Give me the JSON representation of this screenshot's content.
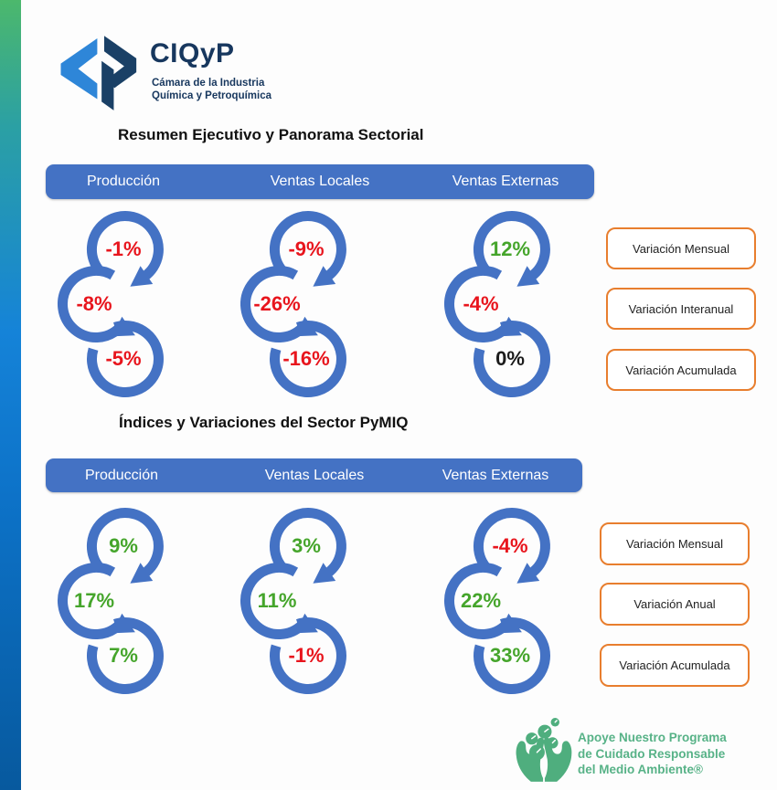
{
  "logo": {
    "name": "CIQyP",
    "subtitle_line1": "Cámara de la Industria",
    "subtitle_line2": "Química y Petroquímica"
  },
  "colors": {
    "accent_blue": "#4472C4",
    "positive_green": "#45A52B",
    "negative_red": "#E8151D",
    "neutral_black": "#1B1B1B",
    "legend_orange": "#E87E2E",
    "brand_navy": "#17375E",
    "brand_lightblue": "#2E86D8",
    "eco_green": "#57B287"
  },
  "sections": [
    {
      "title": "Resumen Ejecutivo y Panorama Sectorial",
      "columns": [
        {
          "header": "Producción",
          "values": [
            {
              "text": "-1%",
              "tone": "negative"
            },
            {
              "text": "-8%",
              "tone": "negative"
            },
            {
              "text": "-5%",
              "tone": "negative"
            }
          ]
        },
        {
          "header": "Ventas Locales",
          "values": [
            {
              "text": "-9%",
              "tone": "negative"
            },
            {
              "text": "-26%",
              "tone": "negative"
            },
            {
              "text": "-16%",
              "tone": "negative"
            }
          ]
        },
        {
          "header": "Ventas Externas",
          "values": [
            {
              "text": "12%",
              "tone": "positive"
            },
            {
              "text": "-4%",
              "tone": "negative"
            },
            {
              "text": "0%",
              "tone": "neutral"
            }
          ]
        }
      ],
      "legend": [
        "Variación Mensual",
        "Variación Interanual",
        "Variación Acumulada"
      ]
    },
    {
      "title": "Índices y Variaciones del Sector PyMIQ",
      "columns": [
        {
          "header": "Producción",
          "values": [
            {
              "text": "9%",
              "tone": "positive"
            },
            {
              "text": "17%",
              "tone": "positive"
            },
            {
              "text": "7%",
              "tone": "positive"
            }
          ]
        },
        {
          "header": "Ventas Locales",
          "values": [
            {
              "text": "3%",
              "tone": "positive"
            },
            {
              "text": "11%",
              "tone": "positive"
            },
            {
              "text": "-1%",
              "tone": "negative"
            }
          ]
        },
        {
          "header": "Ventas Externas",
          "values": [
            {
              "text": "-4%",
              "tone": "negative"
            },
            {
              "text": "22%",
              "tone": "positive"
            },
            {
              "text": "33%",
              "tone": "positive"
            }
          ]
        }
      ],
      "legend": [
        "Variación Mensual",
        "Variación Anual",
        "Variación Acumulada"
      ]
    }
  ],
  "chart_data": [
    {
      "type": "table",
      "title": "Resumen Ejecutivo y Panorama Sectorial",
      "unit": "%",
      "categories": [
        "Producción",
        "Ventas Locales",
        "Ventas Externas"
      ],
      "series": [
        {
          "name": "Variación Mensual",
          "values": [
            -1,
            -9,
            12
          ]
        },
        {
          "name": "Variación Interanual",
          "values": [
            -8,
            -26,
            -4
          ]
        },
        {
          "name": "Variación Acumulada",
          "values": [
            -5,
            -16,
            0
          ]
        }
      ]
    },
    {
      "type": "table",
      "title": "Índices y Variaciones del Sector PyMIQ",
      "unit": "%",
      "categories": [
        "Producción",
        "Ventas Locales",
        "Ventas Externas"
      ],
      "series": [
        {
          "name": "Variación Mensual",
          "values": [
            9,
            3,
            -4
          ]
        },
        {
          "name": "Variación Anual",
          "values": [
            17,
            11,
            22
          ]
        },
        {
          "name": "Variación Acumulada",
          "values": [
            7,
            -1,
            33
          ]
        }
      ]
    }
  ],
  "footer": {
    "line1": "Apoye Nuestro Programa",
    "line2": "de Cuidado Responsable",
    "line3": "del Medio Ambiente®"
  }
}
